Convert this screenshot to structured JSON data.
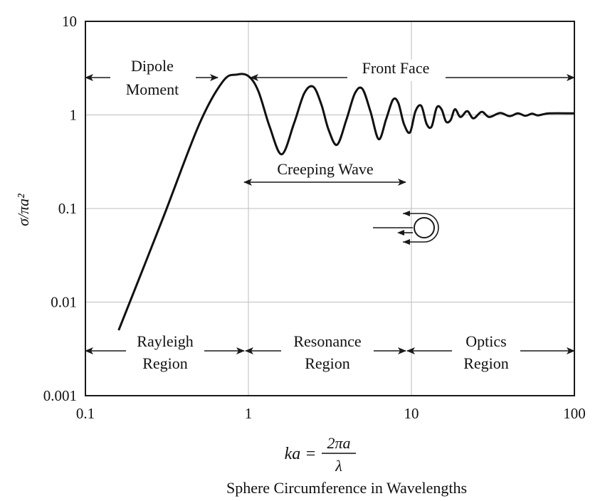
{
  "chart_data": {
    "type": "line",
    "title": "",
    "x_scale": "log",
    "y_scale": "log",
    "xlim": [
      0.1,
      100
    ],
    "ylim": [
      0.001,
      10
    ],
    "grid": true,
    "x_ticks": [
      "0.1",
      "1",
      "10",
      "100"
    ],
    "y_ticks": [
      "0.001",
      "0.01",
      "0.1",
      "1",
      "10"
    ],
    "ylabel": "σ/πa²",
    "xlabel_formula": {
      "lhs": "ka =",
      "numerator": "2πa",
      "denominator": "λ"
    },
    "xlabel": "Sphere Circumference in Wavelengths",
    "annotations": {
      "dipole_line1": "Dipole",
      "dipole_line2": "Moment",
      "front_face": "Front Face",
      "creeping_wave": "Creeping Wave",
      "rayleigh_line1": "Rayleigh",
      "rayleigh_line2": "Region",
      "resonance_line1": "Resonance",
      "resonance_line2": "Region",
      "optics_line1": "Optics",
      "optics_line2": "Region"
    },
    "series": [
      {
        "x": [
          0.16,
          0.3,
          0.5,
          0.7,
          0.85,
          1.0,
          1.15,
          1.35,
          1.6,
          1.9,
          2.2,
          2.5,
          2.8,
          3.1,
          3.5,
          4.0,
          4.5,
          5.0,
          5.6,
          6.3,
          7.0,
          7.7,
          8.3,
          9.0,
          9.8,
          10.6,
          11.5,
          12.4,
          13.3,
          14.3,
          15.3,
          16.3,
          17.4,
          18.5,
          20,
          22,
          24,
          27,
          30,
          35,
          40,
          45,
          50,
          55,
          60,
          70,
          100
        ],
        "y": [
          0.005,
          0.08,
          0.8,
          2.3,
          2.7,
          2.6,
          1.8,
          0.75,
          0.38,
          0.8,
          1.7,
          2.0,
          1.3,
          0.7,
          0.48,
          0.9,
          1.7,
          1.9,
          1.1,
          0.55,
          0.9,
          1.45,
          1.35,
          0.8,
          0.65,
          1.1,
          1.25,
          0.8,
          0.75,
          1.2,
          1.15,
          0.85,
          0.88,
          1.15,
          0.95,
          1.1,
          0.92,
          1.08,
          0.95,
          1.05,
          0.97,
          1.04,
          0.98,
          1.03,
          0.99,
          1.04,
          1.04
        ]
      }
    ]
  }
}
